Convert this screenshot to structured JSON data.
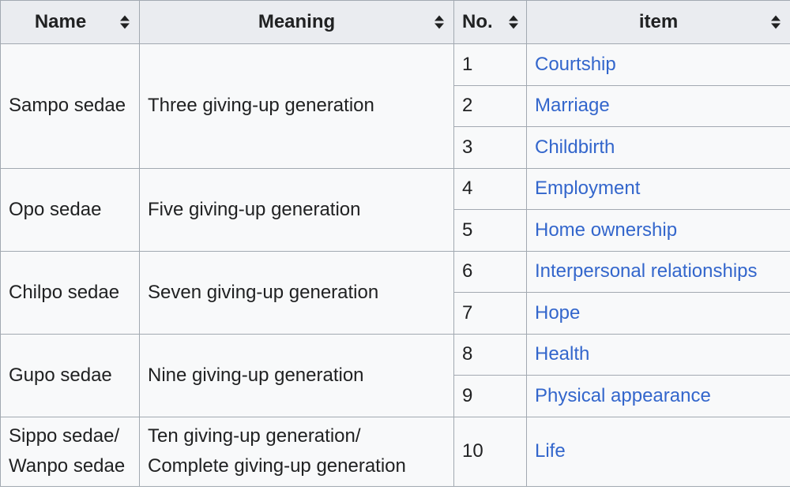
{
  "table": {
    "headers": {
      "name": "Name",
      "meaning": "Meaning",
      "no": "No.",
      "item": "item"
    },
    "groups": [
      {
        "name": "Sampo sedae",
        "meaning": "Three giving-up generation",
        "items": [
          {
            "no": "1",
            "label": "Courtship"
          },
          {
            "no": "2",
            "label": "Marriage"
          },
          {
            "no": "3",
            "label": "Childbirth"
          }
        ]
      },
      {
        "name": "Opo sedae",
        "meaning": "Five giving-up generation",
        "items": [
          {
            "no": "4",
            "label": "Employment"
          },
          {
            "no": "5",
            "label": "Home ownership"
          }
        ]
      },
      {
        "name": "Chilpo sedae",
        "meaning": "Seven giving-up generation",
        "items": [
          {
            "no": "6",
            "label": "Interpersonal relationships"
          },
          {
            "no": "7",
            "label": "Hope"
          }
        ]
      },
      {
        "name": "Gupo sedae",
        "meaning": "Nine giving-up generation",
        "items": [
          {
            "no": "8",
            "label": "Health"
          },
          {
            "no": "9",
            "label": "Physical appearance"
          }
        ]
      },
      {
        "name_line1": "Sippo sedae/",
        "name_line2": "Wanpo sedae",
        "meaning_line1": "Ten giving-up generation/",
        "meaning_line2": "Complete giving-up generation",
        "items": [
          {
            "no": "10",
            "label": "Life"
          }
        ]
      }
    ]
  },
  "colors": {
    "header_bg": "#eaecf0",
    "cell_bg": "#f8f9fa",
    "border": "#a2a9b1",
    "link": "#3366cc",
    "text": "#202122"
  }
}
